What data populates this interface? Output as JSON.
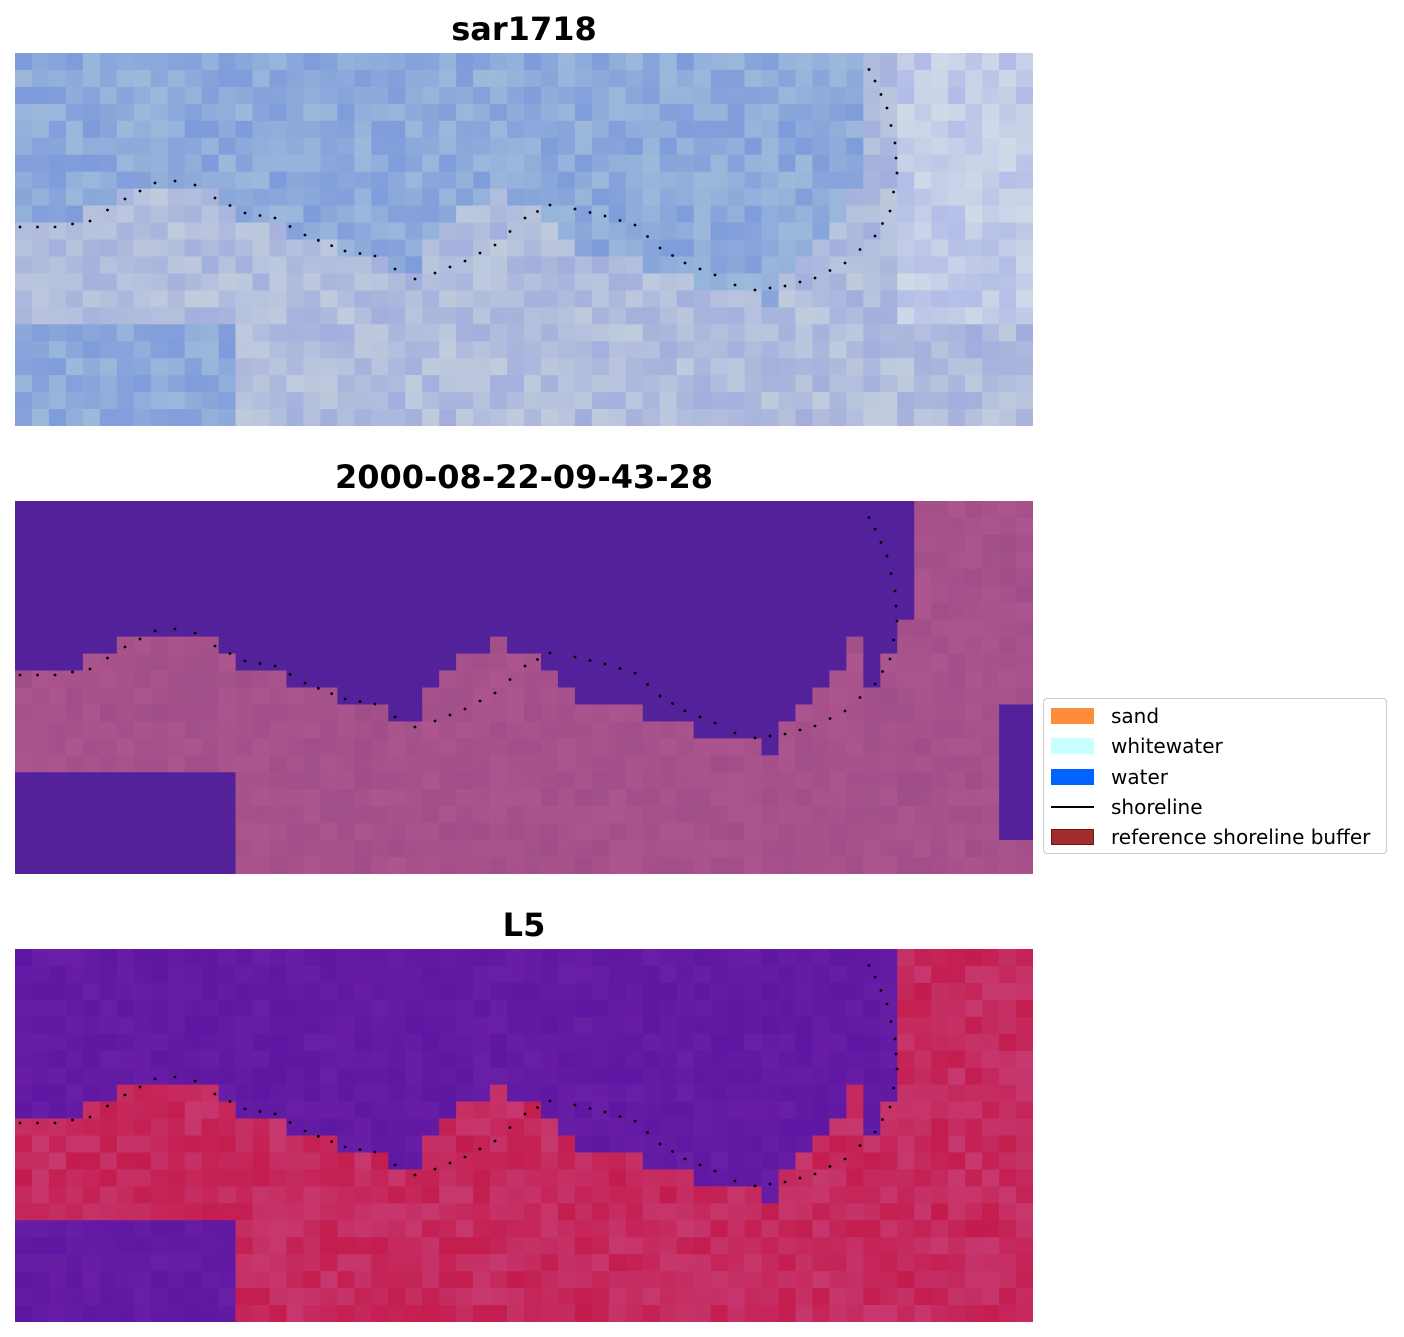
{
  "panels": [
    {
      "id": "rgb",
      "title": "sar1718"
    },
    {
      "id": "classified",
      "title": "2000-08-22-09-43-28"
    },
    {
      "id": "index",
      "title": "L5"
    }
  ],
  "legend": {
    "items": [
      {
        "label": "sand",
        "color": "#ff8c3a",
        "kind": "patch"
      },
      {
        "label": "whitewater",
        "color": "#c8ffff",
        "kind": "patch"
      },
      {
        "label": "water",
        "color": "#0062ff",
        "kind": "patch"
      },
      {
        "label": "shoreline",
        "color": "#000000",
        "kind": "line"
      },
      {
        "label": "reference shoreline buffer",
        "color": "#a12c2c",
        "kind": "patch"
      }
    ]
  },
  "colors": {
    "water_class": "#53229a",
    "land_class": "#a14e88",
    "index_water": "#5e17a2",
    "index_land": "#c41c4e",
    "rgb_sky": "#8fb0d6",
    "rgb_land": "#b8c5d8"
  }
}
